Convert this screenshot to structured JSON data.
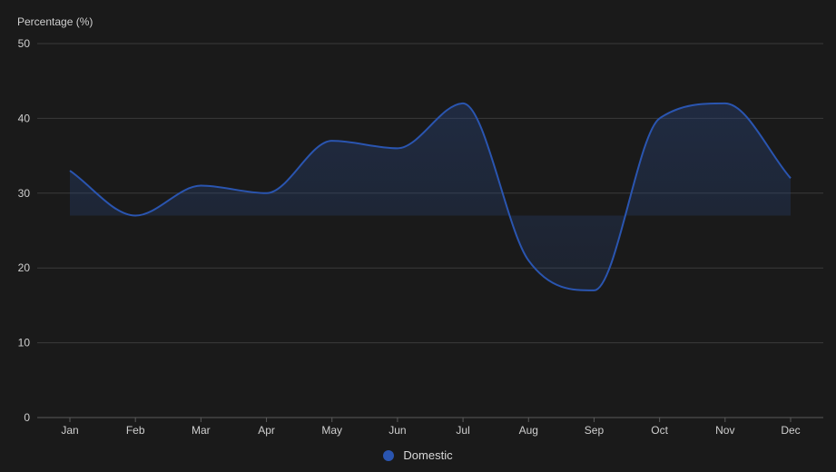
{
  "chart_data": {
    "type": "area",
    "title": "",
    "xlabel": "",
    "ylabel": "Percentage (%)",
    "ylim": [
      0,
      50
    ],
    "yticks": [
      0,
      10,
      20,
      30,
      40,
      50
    ],
    "categories": [
      "Jan",
      "Feb",
      "Mar",
      "Apr",
      "May",
      "Jun",
      "Jul",
      "Aug",
      "Sep",
      "Oct",
      "Nov",
      "Dec"
    ],
    "baseline": 27,
    "grid": true,
    "legend_position": "bottom-center",
    "series": [
      {
        "name": "Domestic",
        "color": "#2a55b0",
        "values": [
          33,
          27,
          31,
          30,
          37,
          36,
          42,
          21,
          17,
          40,
          42,
          32
        ]
      }
    ]
  }
}
